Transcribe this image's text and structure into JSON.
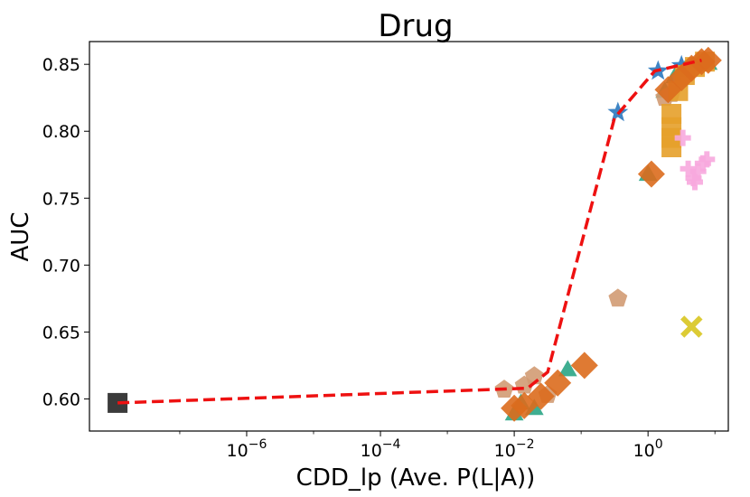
{
  "chart_data": {
    "type": "scatter",
    "title": "Drug",
    "xlabel": "CDD_lp (Ave. P(L|A))",
    "ylabel": "AUC",
    "xscale": "log",
    "xlim_log10": [
      -8.35,
      1.2
    ],
    "ylim": [
      0.576,
      0.867
    ],
    "x_ticks": [
      {
        "exp": -6,
        "base": "10",
        "sup": "−6"
      },
      {
        "exp": -4,
        "base": "10",
        "sup": "−4"
      },
      {
        "exp": -2,
        "base": "10",
        "sup": "−2"
      },
      {
        "exp": 0,
        "base": "10",
        "sup": "0"
      }
    ],
    "y_ticks": [
      "0.60",
      "0.65",
      "0.70",
      "0.75",
      "0.80",
      "0.85"
    ],
    "pareto_line": {
      "name": "trend",
      "color": "#ee1111",
      "style": "dashed",
      "points": [
        [
          -7.93,
          0.597
        ],
        [
          -1.8,
          0.608
        ],
        [
          -1.5,
          0.62
        ],
        [
          -0.5,
          0.81
        ],
        [
          0.1,
          0.845
        ],
        [
          0.8,
          0.853
        ]
      ]
    },
    "series": [
      {
        "name": "black-square",
        "marker": "square",
        "color": "#262626",
        "points": [
          [
            -7.93,
            0.597
          ]
        ]
      },
      {
        "name": "blue-star",
        "marker": "star",
        "color": "#2a78bf",
        "points": [
          [
            -0.45,
            0.814
          ],
          [
            0.15,
            0.845
          ],
          [
            0.5,
            0.849
          ]
        ]
      },
      {
        "name": "teal-triangle",
        "marker": "triangle",
        "color": "#2aa585",
        "points": [
          [
            -2.0,
            0.588
          ],
          [
            -1.9,
            0.596
          ],
          [
            -1.7,
            0.592
          ],
          [
            -1.2,
            0.621
          ],
          [
            0.0,
            0.767
          ],
          [
            0.25,
            0.829
          ],
          [
            0.4,
            0.84
          ],
          [
            0.55,
            0.845
          ],
          [
            0.75,
            0.851
          ],
          [
            0.9,
            0.85
          ]
        ]
      },
      {
        "name": "tan-pentagon",
        "marker": "pentagon",
        "color": "#d29b73",
        "points": [
          [
            -2.15,
            0.607
          ],
          [
            -1.85,
            0.61
          ],
          [
            -1.7,
            0.617
          ],
          [
            -1.5,
            0.603
          ],
          [
            -0.45,
            0.675
          ],
          [
            0.25,
            0.825
          ],
          [
            0.35,
            0.828
          ],
          [
            0.5,
            0.839
          ]
        ]
      },
      {
        "name": "gold-square",
        "marker": "square",
        "color": "#e6a02a",
        "points": [
          [
            0.35,
            0.813
          ],
          [
            0.35,
            0.803
          ],
          [
            0.35,
            0.795
          ],
          [
            0.35,
            0.788
          ],
          [
            0.45,
            0.83
          ],
          [
            0.55,
            0.842
          ],
          [
            0.7,
            0.848
          ],
          [
            0.85,
            0.852
          ]
        ]
      },
      {
        "name": "pink-plus",
        "marker": "plus",
        "color": "#f7a8de",
        "points": [
          [
            0.52,
            0.795
          ],
          [
            0.6,
            0.772
          ],
          [
            0.68,
            0.765
          ],
          [
            0.75,
            0.77
          ],
          [
            0.82,
            0.776
          ],
          [
            0.88,
            0.779
          ],
          [
            0.7,
            0.762
          ]
        ]
      },
      {
        "name": "yellow-x",
        "marker": "x",
        "color": "#dccb35",
        "points": [
          [
            0.65,
            0.654
          ]
        ]
      },
      {
        "name": "orange-diamond",
        "marker": "diamond",
        "color": "#db6b1d",
        "points": [
          [
            -2.0,
            0.593
          ],
          [
            -1.85,
            0.595
          ],
          [
            -1.6,
            0.602
          ],
          [
            -1.35,
            0.612
          ],
          [
            -0.95,
            0.625
          ],
          [
            0.05,
            0.768
          ],
          [
            0.3,
            0.831
          ],
          [
            0.5,
            0.84
          ],
          [
            0.65,
            0.847
          ],
          [
            0.8,
            0.852
          ],
          [
            0.9,
            0.853
          ]
        ]
      }
    ]
  }
}
